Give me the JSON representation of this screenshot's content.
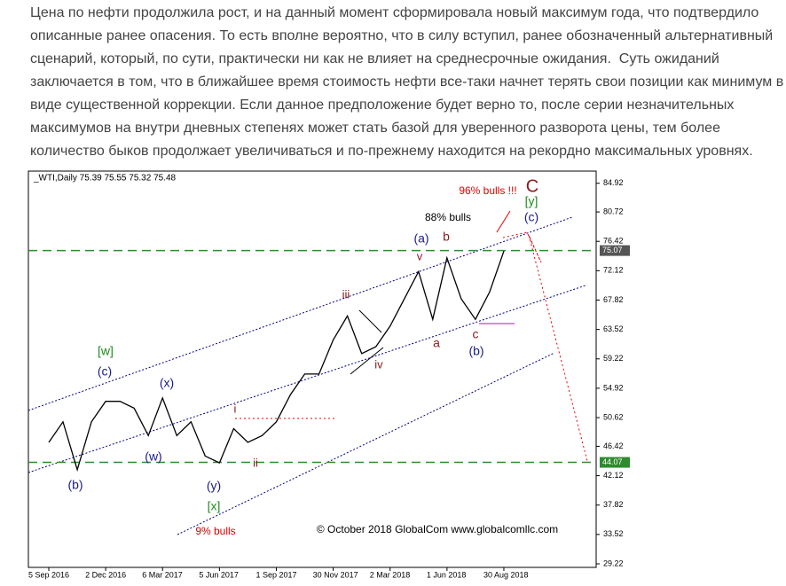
{
  "text": {
    "paragraph": [
      "Цена по нефти продолжила рост, и на данный момент сформировала новый максимум года, что подтвердило",
      "описанные ранее опасения. То есть вполне вероятно, что в силу вступил, ранее обозначенный альтернативный",
      "сценарий, который, по сути, практически ни как не влияет на среднесрочные ожидания.  Суть ожиданий",
      "заключается в том, что в ближайшее время стоимость нефти все-таки начнет терять свои позиции как минимум в",
      "виде существенной коррекции. Если данное предположение будет верно то, после серии незначительных",
      "максимумов на внутри дневных степенях может стать базой для уверенного разворота цены, тем более",
      "количество быков продолжает увеличиваться и по-прежнему находится на рекордно максимальных уровнях."
    ]
  },
  "chart_data": {
    "type": "line",
    "title": "_WTI,Daily  75.39 75.55 75.32 75.48",
    "categories": [
      "5 Sep 2016",
      null,
      null,
      null,
      "2 Dec 2016",
      null,
      null,
      null,
      "6 Mar 2017",
      null,
      null,
      null,
      "5 Jun 2017",
      null,
      null,
      null,
      "1 Sep 2017",
      null,
      null,
      null,
      "30 Nov 2017",
      null,
      null,
      null,
      "2 Mar 2018",
      null,
      null,
      null,
      "1 Jun 2018",
      null,
      null,
      null,
      "30 Aug 2018"
    ],
    "series": [
      {
        "name": "WTI",
        "color": "#000000",
        "values": [
          47,
          50,
          43,
          50,
          53,
          53,
          52,
          48,
          53.5,
          48,
          50,
          45,
          44,
          49,
          47,
          48,
          50,
          54,
          57,
          57,
          62,
          65.5,
          60,
          61,
          64,
          68,
          72,
          65,
          74,
          68,
          65,
          69,
          75
        ]
      }
    ],
    "ylim": [
      28.7,
      86.7
    ],
    "yticks": [
      84.92,
      80.72,
      76.42,
      72.12,
      67.82,
      63.52,
      59.22,
      54.92,
      50.62,
      46.42,
      42.12,
      37.82,
      33.52,
      29.22
    ],
    "hlines": [
      75.07,
      44.07
    ],
    "hline_color": "#2e8b2e",
    "annotations": [
      "[w]",
      "(c)",
      "(x)",
      "(w)",
      "(b)",
      "(y)",
      "[x]",
      "9% bulls",
      "i",
      "ii",
      "iii",
      "iv",
      "v",
      "(a)",
      "b",
      "a",
      "c",
      "(b)",
      "(c)",
      "[y]",
      "C",
      "88% bulls",
      "96% bulls !!!",
      "© October 2018 GlobalCom www.globalcomllc.com"
    ]
  }
}
